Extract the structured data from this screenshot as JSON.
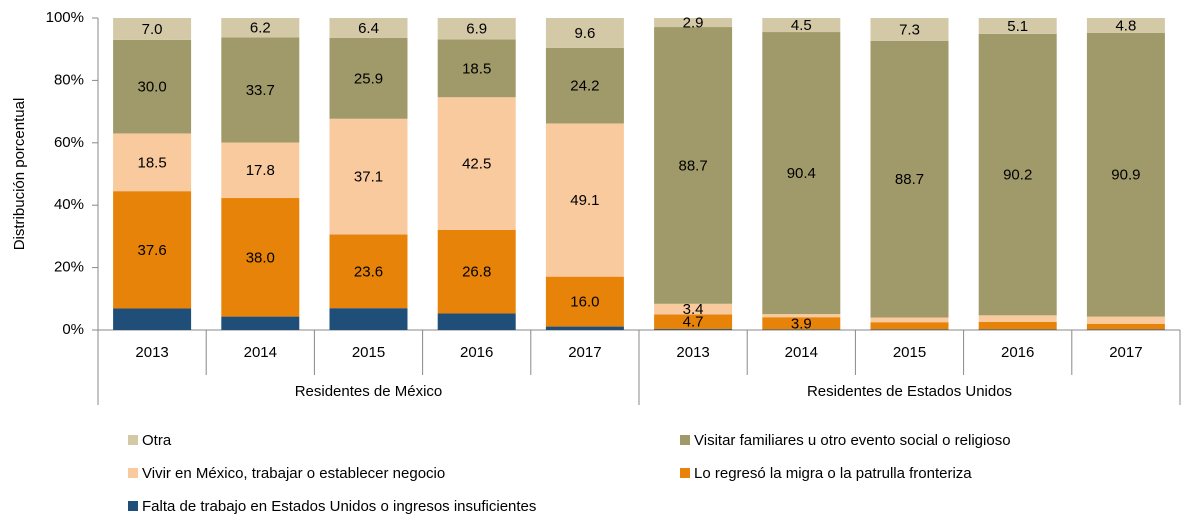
{
  "chart_data": {
    "type": "stacked_bar",
    "ylabel": "Distribución porcentual",
    "categories": [
      "2013",
      "2014",
      "2015",
      "2016",
      "2017",
      "2013",
      "2014",
      "2015",
      "2016",
      "2017"
    ],
    "groups": [
      {
        "name": "Residentes de México",
        "count": 5
      },
      {
        "name": "Residentes de Estados Unidos",
        "count": 5
      }
    ],
    "ylim": [
      0,
      100
    ],
    "yticks": [
      {
        "value": 0,
        "label": "0%"
      },
      {
        "value": 20,
        "label": "20%"
      },
      {
        "value": 40,
        "label": "40%"
      },
      {
        "value": 60,
        "label": "60%"
      },
      {
        "value": 80,
        "label": "80%"
      },
      {
        "value": 100,
        "label": "100%"
      }
    ],
    "series": [
      {
        "name": "Falta de trabajo en Estados Unidos o ingresos insuficientes",
        "color": "#1f4e79",
        "values": [
          6.9,
          4.3,
          7.0,
          5.3,
          1.1,
          0.3,
          0.2,
          0.2,
          0.2,
          0.2
        ]
      },
      {
        "name": "Lo regresó la migra o la patrulla fronteriza",
        "color": "#e8830a",
        "values": [
          37.6,
          38.0,
          23.6,
          26.8,
          16.0,
          4.7,
          3.9,
          2.3,
          2.4,
          1.8
        ],
        "value_labels": [
          "37.6",
          "38.0",
          "23.6",
          "26.8",
          "16.0",
          "4.7",
          "3.9",
          null,
          null,
          null
        ]
      },
      {
        "name": "Vivir en México, trabajar o establecer negocio",
        "color": "#f9ca9e",
        "values": [
          18.5,
          17.8,
          37.1,
          42.5,
          49.1,
          3.4,
          1.0,
          1.5,
          2.1,
          2.3
        ],
        "value_labels": [
          "18.5",
          "17.8",
          "37.1",
          "42.5",
          "49.1",
          "3.4",
          null,
          null,
          null,
          null
        ]
      },
      {
        "name": "Visitar familiares u otro evento social o religioso",
        "color": "#a09a6a",
        "values": [
          30.0,
          33.7,
          25.9,
          18.5,
          24.2,
          88.7,
          90.4,
          88.7,
          90.2,
          90.9
        ],
        "value_labels": [
          "30.0",
          "33.7",
          "25.9",
          "18.5",
          "24.2",
          "88.7",
          "90.4",
          "88.7",
          "90.2",
          "90.9"
        ]
      },
      {
        "name": "Otra",
        "color": "#d3c9a6",
        "values": [
          7.0,
          6.2,
          6.4,
          6.9,
          9.6,
          2.9,
          4.5,
          7.3,
          5.1,
          4.8
        ],
        "value_labels": [
          "7.0",
          "6.2",
          "6.4",
          "6.9",
          "9.6",
          "2.9",
          "4.5",
          "7.3",
          "5.1",
          "4.8"
        ]
      }
    ]
  }
}
